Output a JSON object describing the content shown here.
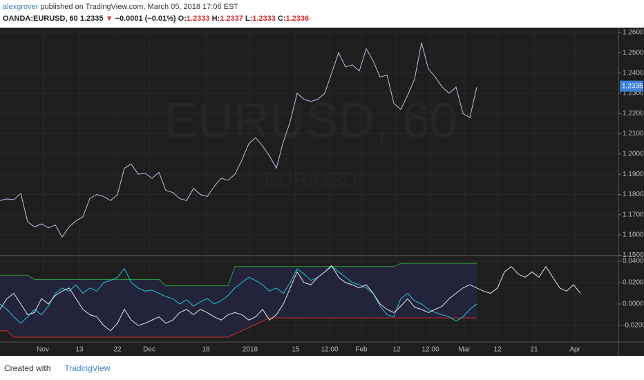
{
  "header": {
    "author": "alexgrover",
    "published": "published on TradingView.com, March 05, 2018 17:06 EST",
    "symbol": "OANDA:EURUSD, 60",
    "last": "1.2335",
    "arrow": "▼",
    "change": "−0.0001 (−0.01%)",
    "ohlc": [
      {
        "label": "O:",
        "value": "1.2333"
      },
      {
        "label": "H:",
        "value": "1.2337"
      },
      {
        "label": "L:",
        "value": "1.2333"
      },
      {
        "label": "C:",
        "value": "1.2336"
      }
    ]
  },
  "watermark": {
    "title": "EURUSD, 60",
    "subtitle": "EUR/USD"
  },
  "footer": {
    "created": "Created with",
    "brand": "TradingView"
  },
  "chart_data": [
    {
      "type": "line",
      "xlim": [
        0,
        89.5
      ],
      "ylim": [
        1.1498,
        1.2624
      ],
      "last_value": 1.2335,
      "last_color": "#3d7fd6",
      "grid": true,
      "yticks": [
        {
          "value": 1.15,
          "label": "1.1500"
        },
        {
          "value": 1.16,
          "label": "1.1600"
        },
        {
          "value": 1.17,
          "label": "1.1700"
        },
        {
          "value": 1.18,
          "label": "1.1800"
        },
        {
          "value": 1.19,
          "label": "1.1900"
        },
        {
          "value": 1.2,
          "label": "1.2000"
        },
        {
          "value": 1.21,
          "label": "1.2100"
        },
        {
          "value": 1.22,
          "label": "1.2200"
        },
        {
          "value": 1.23,
          "label": "1.2300"
        },
        {
          "value": 1.24,
          "label": "1.2400"
        },
        {
          "value": 1.25,
          "label": "1.2500"
        },
        {
          "value": 1.26,
          "label": "1.2600"
        }
      ],
      "series": [
        {
          "color": "#b4c6e7",
          "values": [
            1.177,
            1.1778,
            1.1775,
            1.1805,
            1.1665,
            1.164,
            1.1655,
            1.1635,
            1.165,
            1.159,
            1.164,
            1.167,
            1.169,
            1.178,
            1.18,
            1.179,
            1.177,
            1.18,
            1.193,
            1.195,
            1.19,
            1.1905,
            1.188,
            1.191,
            1.182,
            1.181,
            1.178,
            1.177,
            1.183,
            1.18,
            1.179,
            1.184,
            1.188,
            1.187,
            1.19,
            1.197,
            1.205,
            1.208,
            1.204,
            1.199,
            1.193,
            1.206,
            1.216,
            1.23,
            1.227,
            1.226,
            1.227,
            1.23,
            1.24,
            1.25,
            1.243,
            1.244,
            1.241,
            1.252,
            1.246,
            1.238,
            1.239,
            1.225,
            1.222,
            1.229,
            1.237,
            1.255,
            1.242,
            1.238,
            1.233,
            1.23,
            1.233,
            1.22,
            1.218,
            1.233
          ]
        }
      ]
    },
    {
      "type": "line",
      "xlim": [
        0,
        89.5
      ],
      "ylim": [
        -0.0355,
        0.0452
      ],
      "grid": true,
      "band_color": "#24243f",
      "yticks": [
        {
          "value": -0.02,
          "label": "-0.0200"
        },
        {
          "value": 0,
          "label": "0.0000"
        },
        {
          "value": 0.02,
          "label": "0.0200"
        },
        {
          "value": 0.04,
          "label": "0.0400"
        }
      ],
      "xticks": [
        {
          "value": 6.2,
          "label": "Nov"
        },
        {
          "value": 11.5,
          "label": "13"
        },
        {
          "value": 17,
          "label": "22"
        },
        {
          "value": 21.6,
          "label": "Dec"
        },
        {
          "value": 29.8,
          "label": "18"
        },
        {
          "value": 36.2,
          "label": "2018"
        },
        {
          "value": 42.8,
          "label": "15"
        },
        {
          "value": 47.7,
          "label": "12:00"
        },
        {
          "value": 52.3,
          "label": "Feb"
        },
        {
          "value": 57.4,
          "label": "12"
        },
        {
          "value": 62.3,
          "label": "12:00"
        },
        {
          "value": 67.2,
          "label": "Mar"
        },
        {
          "value": 72,
          "label": "12"
        },
        {
          "value": 77.3,
          "label": "21"
        },
        {
          "value": 83.2,
          "label": "Apr"
        }
      ],
      "series": [
        {
          "color": "#2e9e3e",
          "values": [
            0.027,
            0.027,
            0.027,
            0.027,
            0.027,
            0.023,
            0.023,
            0.023,
            0.023,
            0.023,
            0.023,
            0.023,
            0.023,
            0.023,
            0.023,
            0.023,
            0.023,
            0.023,
            0.023,
            0.023,
            0.023,
            0.023,
            0.023,
            0.023,
            0.017,
            0.017,
            0.017,
            0.017,
            0.017,
            0.017,
            0.017,
            0.017,
            0.017,
            0.017,
            0.035,
            0.035,
            0.035,
            0.035,
            0.035,
            0.035,
            0.035,
            0.035,
            0.035,
            0.035,
            0.035,
            0.035,
            0.035,
            0.035,
            0.035,
            0.035,
            0.035,
            0.035,
            0.035,
            0.035,
            0.035,
            0.035,
            0.035,
            0.035,
            0.038,
            0.038,
            0.038,
            0.038,
            0.038,
            0.038,
            0.038,
            0.038,
            0.038,
            0.038,
            0.038,
            0.038
          ]
        },
        {
          "color": "#d32f2f",
          "values": [
            -0.025,
            -0.025,
            -0.031,
            -0.031,
            -0.031,
            -0.031,
            -0.031,
            -0.031,
            -0.031,
            -0.031,
            -0.031,
            -0.031,
            -0.031,
            -0.031,
            -0.031,
            -0.031,
            -0.031,
            -0.031,
            -0.031,
            -0.031,
            -0.031,
            -0.031,
            -0.031,
            -0.031,
            -0.031,
            -0.031,
            -0.031,
            -0.031,
            -0.031,
            -0.031,
            -0.031,
            -0.031,
            -0.031,
            -0.031,
            -0.028,
            -0.025,
            -0.022,
            -0.019,
            -0.016,
            -0.013,
            -0.013,
            -0.013,
            -0.013,
            -0.013,
            -0.013,
            -0.013,
            -0.013,
            -0.013,
            -0.013,
            -0.013,
            -0.013,
            -0.013,
            -0.013,
            -0.013,
            -0.013,
            -0.013,
            -0.013,
            -0.013,
            -0.013,
            -0.013,
            -0.013,
            -0.013,
            -0.013,
            -0.013,
            -0.013,
            -0.013,
            -0.013,
            -0.013,
            -0.013,
            -0.013
          ]
        },
        {
          "color": "#26c6da",
          "values": [
            0,
            -0.005,
            -0.012,
            -0.018,
            -0.012,
            -0.005,
            -0.01,
            -0.002,
            0.01,
            0.015,
            0.012,
            0.018,
            0.01,
            0.015,
            0.012,
            0.02,
            0.022,
            0.025,
            0.033,
            0.02,
            0.015,
            0.012,
            0.013,
            0.01,
            0.007,
            0.005,
            0,
            0.004,
            -0.002,
            0.002,
            0.005,
            0,
            0.003,
            0.008,
            0.015,
            0.02,
            0.025,
            0.022,
            0.018,
            0.012,
            0.015,
            0.01,
            0.02,
            0.033,
            0.028,
            0.022,
            0.025,
            0.03,
            0.035,
            0.03,
            0.025,
            0.02,
            0.018,
            0.015,
            0.01,
            -0.002,
            -0.01,
            -0.012,
            0.005,
            0.01,
            0.003,
            0,
            -0.005,
            -0.008,
            -0.01,
            -0.012,
            -0.016,
            -0.012,
            -0.005,
            0
          ]
        },
        {
          "color": "#e6e6e6",
          "values": [
            -0.005,
            0.005,
            0.01,
            0,
            -0.01,
            -0.008,
            0.005,
            0,
            0.008,
            0.012,
            0.015,
            0.005,
            -0.005,
            -0.01,
            -0.012,
            -0.02,
            -0.025,
            -0.018,
            -0.005,
            -0.015,
            -0.02,
            -0.018,
            -0.015,
            -0.012,
            -0.018,
            -0.015,
            -0.008,
            -0.005,
            -0.01,
            -0.005,
            -0.008,
            -0.012,
            -0.015,
            -0.01,
            -0.008,
            -0.01,
            -0.015,
            -0.012,
            -0.005,
            -0.015,
            -0.01,
            0,
            0.015,
            0.03,
            0.02,
            0.018,
            0.025,
            0.03,
            0.036,
            0.025,
            0.02,
            0.018,
            0.015,
            0.018,
            0.01,
            0,
            -0.005,
            -0.008,
            -0.002,
            0.005,
            -0.003,
            -0.005,
            -0.008,
            -0.005,
            -0.002,
            0.005,
            0.01,
            0.015,
            0.018,
            0.015,
            0.012,
            0.01,
            0.015,
            0.03,
            0.035,
            0.028,
            0.025,
            0.03,
            0.025,
            0.035,
            0.025,
            0.015,
            0.012,
            0.018,
            0.01
          ]
        }
      ]
    }
  ]
}
